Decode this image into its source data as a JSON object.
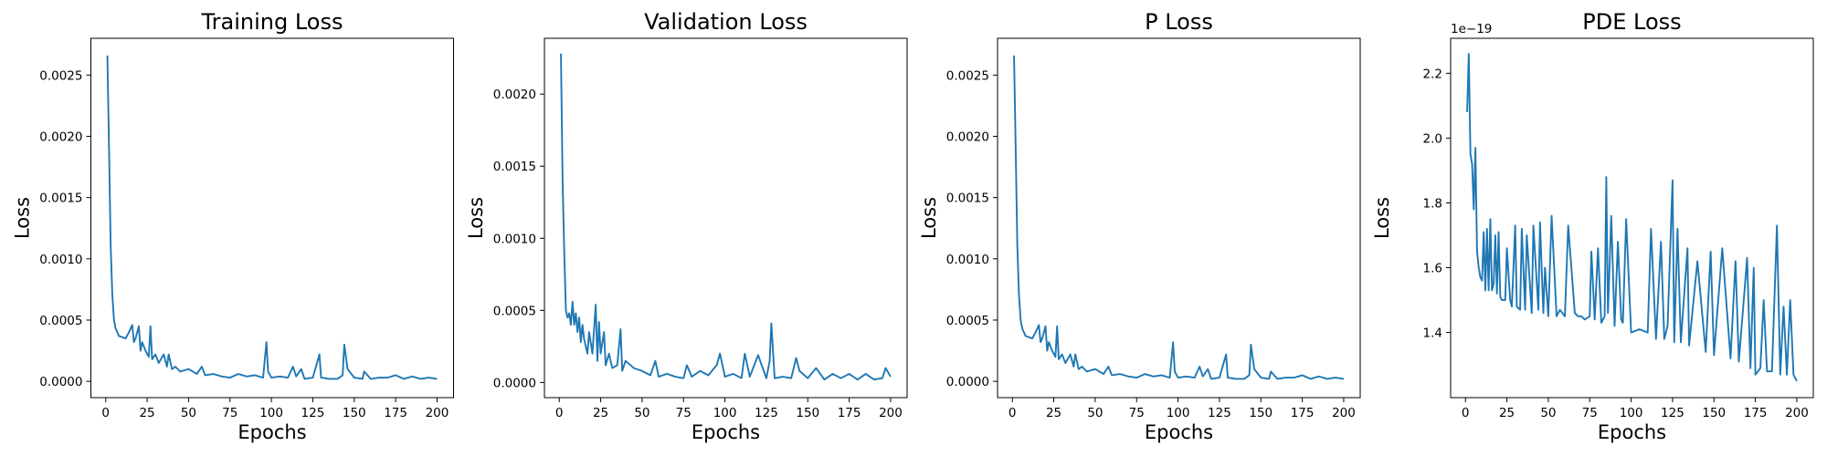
{
  "chart_data": [
    {
      "type": "line",
      "title": "Training Loss",
      "xlabel": "Epochs",
      "ylabel": "Loss",
      "color": "#1f77b4",
      "x": [
        1,
        2,
        3,
        4,
        5,
        6,
        7,
        8,
        10,
        12,
        14,
        16,
        17,
        18,
        20,
        21,
        22,
        24,
        26,
        27,
        28,
        30,
        32,
        35,
        37,
        38,
        40,
        42,
        45,
        50,
        55,
        58,
        60,
        65,
        70,
        75,
        80,
        85,
        90,
        95,
        97,
        98,
        100,
        105,
        110,
        113,
        115,
        118,
        120,
        125,
        129,
        130,
        135,
        140,
        143,
        144,
        146,
        150,
        155,
        156,
        160,
        165,
        170,
        175,
        180,
        185,
        190,
        195,
        200
      ],
      "values": [
        0.00266,
        0.0019,
        0.0011,
        0.0007,
        0.0005,
        0.00043,
        0.0004,
        0.00037,
        0.00036,
        0.00035,
        0.0004,
        0.00046,
        0.00032,
        0.00035,
        0.00045,
        0.00025,
        0.00032,
        0.00025,
        0.0002,
        0.00045,
        0.00018,
        0.00022,
        0.00015,
        0.00022,
        0.00012,
        0.00022,
        0.0001,
        0.00012,
        8e-05,
        0.0001,
        6e-05,
        0.00012,
        5e-05,
        6e-05,
        4e-05,
        3e-05,
        6e-05,
        4e-05,
        5e-05,
        3e-05,
        0.00032,
        8e-05,
        3e-05,
        4e-05,
        3e-05,
        0.00012,
        4e-05,
        0.0001,
        2e-05,
        3e-05,
        0.00022,
        3e-05,
        2e-05,
        2e-05,
        5e-05,
        0.0003,
        0.0001,
        3e-05,
        2e-05,
        8e-05,
        2e-05,
        3e-05,
        3e-05,
        5e-05,
        2e-05,
        4e-05,
        2e-05,
        3e-05,
        2e-05
      ],
      "xlim": [
        -8.95,
        209.95
      ],
      "xticks": [
        0,
        25,
        50,
        75,
        100,
        125,
        150,
        175,
        200
      ],
      "ylim": [
        -0.000133,
        0.0028
      ],
      "yticks": [
        {
          "value": 0,
          "label": "0.0000"
        },
        {
          "value": 0.0005,
          "label": "0.0005"
        },
        {
          "value": 0.001,
          "label": "0.0010"
        },
        {
          "value": 0.0015,
          "label": "0.0015"
        },
        {
          "value": 0.002,
          "label": "0.0020"
        },
        {
          "value": 0.0025,
          "label": "0.0025"
        }
      ]
    },
    {
      "type": "line",
      "title": "Validation Loss",
      "xlabel": "Epochs",
      "ylabel": "Loss",
      "color": "#1f77b4",
      "x": [
        1,
        2,
        3,
        4,
        5,
        6,
        7,
        8,
        9,
        10,
        11,
        12,
        13,
        14,
        15,
        17,
        18,
        20,
        22,
        23,
        24,
        25,
        27,
        28,
        30,
        32,
        35,
        37,
        38,
        40,
        45,
        50,
        55,
        58,
        60,
        65,
        70,
        75,
        77,
        80,
        85,
        90,
        95,
        97,
        100,
        105,
        110,
        112,
        115,
        120,
        125,
        127,
        128,
        130,
        135,
        140,
        143,
        145,
        150,
        155,
        160,
        165,
        170,
        175,
        180,
        185,
        190,
        195,
        197,
        200
      ],
      "values": [
        0.00228,
        0.0014,
        0.0009,
        0.0005,
        0.00045,
        0.00048,
        0.0004,
        0.00056,
        0.0004,
        0.00048,
        0.00035,
        0.00045,
        0.00028,
        0.0004,
        0.0003,
        0.0002,
        0.00035,
        0.0002,
        0.00054,
        0.00015,
        0.00042,
        0.0002,
        0.00035,
        0.00012,
        0.0002,
        0.0001,
        0.00012,
        0.00037,
        8e-05,
        0.00015,
        0.0001,
        8e-05,
        5e-05,
        0.00015,
        4e-05,
        6e-05,
        4e-05,
        3e-05,
        0.00012,
        4e-05,
        8e-05,
        5e-05,
        0.00012,
        0.0002,
        4e-05,
        6e-05,
        3e-05,
        0.0002,
        4e-05,
        0.00019,
        3e-05,
        0.00015,
        0.00041,
        3e-05,
        4e-05,
        3e-05,
        0.00017,
        8e-05,
        3e-05,
        0.0001,
        2e-05,
        6e-05,
        3e-05,
        6e-05,
        2e-05,
        6e-05,
        2e-05,
        3e-05,
        0.0001,
        4e-05
      ],
      "xlim": [
        -8.95,
        209.95
      ],
      "xticks": [
        0,
        25,
        50,
        75,
        100,
        125,
        150,
        175,
        200
      ],
      "ylim": [
        -0.000105,
        0.002387
      ],
      "yticks": [
        {
          "value": 0,
          "label": "0.0000"
        },
        {
          "value": 0.0005,
          "label": "0.0005"
        },
        {
          "value": 0.001,
          "label": "0.0010"
        },
        {
          "value": 0.0015,
          "label": "0.0015"
        },
        {
          "value": 0.002,
          "label": "0.0020"
        }
      ]
    },
    {
      "type": "line",
      "title": "P Loss",
      "xlabel": "Epochs",
      "ylabel": "Loss",
      "color": "#1f77b4",
      "x": [
        1,
        2,
        3,
        4,
        5,
        6,
        7,
        8,
        10,
        12,
        14,
        16,
        17,
        18,
        20,
        21,
        22,
        24,
        26,
        27,
        28,
        30,
        32,
        35,
        37,
        38,
        40,
        42,
        45,
        50,
        55,
        58,
        60,
        65,
        70,
        75,
        80,
        85,
        90,
        95,
        97,
        98,
        100,
        105,
        110,
        113,
        115,
        118,
        120,
        125,
        129,
        130,
        135,
        140,
        143,
        144,
        146,
        150,
        155,
        156,
        160,
        165,
        170,
        175,
        180,
        185,
        190,
        195,
        200
      ],
      "values": [
        0.00266,
        0.0019,
        0.0011,
        0.0007,
        0.0005,
        0.00043,
        0.0004,
        0.00037,
        0.00036,
        0.00035,
        0.0004,
        0.00046,
        0.00032,
        0.00035,
        0.00045,
        0.00025,
        0.00032,
        0.00025,
        0.0002,
        0.00045,
        0.00018,
        0.00022,
        0.00015,
        0.00022,
        0.00012,
        0.00022,
        0.0001,
        0.00012,
        8e-05,
        0.0001,
        6e-05,
        0.00012,
        5e-05,
        6e-05,
        4e-05,
        3e-05,
        6e-05,
        4e-05,
        5e-05,
        3e-05,
        0.00032,
        8e-05,
        3e-05,
        4e-05,
        3e-05,
        0.00012,
        4e-05,
        0.0001,
        2e-05,
        3e-05,
        0.00022,
        3e-05,
        2e-05,
        2e-05,
        5e-05,
        0.0003,
        0.0001,
        3e-05,
        2e-05,
        8e-05,
        2e-05,
        3e-05,
        3e-05,
        5e-05,
        2e-05,
        4e-05,
        2e-05,
        3e-05,
        2e-05
      ],
      "xlim": [
        -8.95,
        209.95
      ],
      "xticks": [
        0,
        25,
        50,
        75,
        100,
        125,
        150,
        175,
        200
      ],
      "ylim": [
        -0.000133,
        0.0028
      ],
      "yticks": [
        {
          "value": 0,
          "label": "0.0000"
        },
        {
          "value": 0.0005,
          "label": "0.0005"
        },
        {
          "value": 0.001,
          "label": "0.0010"
        },
        {
          "value": 0.0015,
          "label": "0.0015"
        },
        {
          "value": 0.002,
          "label": "0.0020"
        },
        {
          "value": 0.0025,
          "label": "0.0025"
        }
      ]
    },
    {
      "type": "line",
      "title": "PDE Loss",
      "xlabel": "Epochs",
      "ylabel": "Loss",
      "color": "#1f77b4",
      "offset_text": "1e−19",
      "x": [
        1,
        2,
        3,
        4,
        5,
        6,
        7,
        8,
        9,
        10,
        11,
        12,
        13,
        14,
        15,
        16,
        17,
        18,
        19,
        20,
        21,
        22,
        24,
        25,
        27,
        28,
        30,
        31,
        33,
        34,
        36,
        37,
        40,
        41,
        44,
        45,
        47,
        48,
        50,
        52,
        55,
        57,
        60,
        62,
        66,
        68,
        70,
        72,
        75,
        76,
        78,
        80,
        82,
        84,
        85,
        86,
        88,
        90,
        92,
        94,
        95,
        97,
        100,
        105,
        110,
        112,
        115,
        118,
        120,
        122,
        125,
        126,
        128,
        130,
        134,
        135,
        140,
        145,
        148,
        150,
        155,
        160,
        163,
        165,
        170,
        172,
        174,
        175,
        178,
        180,
        182,
        185,
        188,
        190,
        192,
        194,
        196,
        198,
        200
      ],
      "values": [
        2.08,
        2.26,
        1.95,
        1.92,
        1.78,
        1.97,
        1.65,
        1.6,
        1.57,
        1.56,
        1.71,
        1.53,
        1.72,
        1.53,
        1.75,
        1.53,
        1.55,
        1.7,
        1.52,
        1.71,
        1.51,
        1.5,
        1.5,
        1.66,
        1.5,
        1.48,
        1.73,
        1.48,
        1.47,
        1.72,
        1.47,
        1.7,
        1.46,
        1.73,
        1.47,
        1.74,
        1.46,
        1.6,
        1.45,
        1.76,
        1.45,
        1.47,
        1.45,
        1.73,
        1.46,
        1.45,
        1.45,
        1.44,
        1.45,
        1.65,
        1.44,
        1.66,
        1.43,
        1.45,
        1.88,
        1.46,
        1.76,
        1.42,
        1.68,
        1.44,
        1.43,
        1.75,
        1.4,
        1.41,
        1.4,
        1.72,
        1.38,
        1.68,
        1.38,
        1.42,
        1.87,
        1.37,
        1.72,
        1.37,
        1.66,
        1.36,
        1.62,
        1.34,
        1.65,
        1.33,
        1.66,
        1.32,
        1.62,
        1.31,
        1.63,
        1.29,
        1.6,
        1.27,
        1.29,
        1.5,
        1.28,
        1.28,
        1.73,
        1.27,
        1.48,
        1.27,
        1.5,
        1.27,
        1.25
      ],
      "xlim": [
        -8.95,
        209.95
      ],
      "xticks": [
        0,
        25,
        50,
        75,
        100,
        125,
        150,
        175,
        200
      ],
      "ylim": [
        1.199,
        2.308
      ],
      "yticks": [
        1.4,
        1.6,
        1.8,
        {
          "value": 2,
          "label": "2.0"
        },
        2.2
      ]
    }
  ]
}
